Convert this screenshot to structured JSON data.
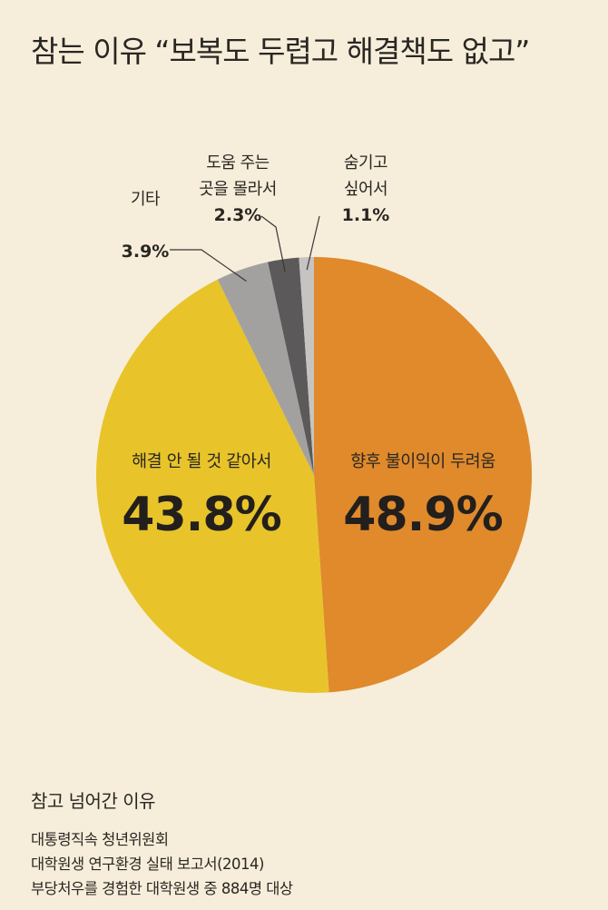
{
  "title": "참는 이유 “보복도 두렵고 해결책도 없고”",
  "footer": {
    "label": "참고 넘어간 이유",
    "source_lines": [
      "대통령직속 청년위원회",
      "대학원생 연구환경 실태 보고서(2014)",
      "부당처우를 경험한 대학원생 중 884명 대상"
    ]
  },
  "colors": {
    "background": "#f6eedb",
    "fear_of_retaliation": "#e08a2c",
    "wont_be_resolved": "#e8c42a",
    "other": "#a3a1a0",
    "dont_know_where": "#5b5959",
    "want_to_hide": "#c6c4c2"
  },
  "chart_data": {
    "type": "pie",
    "title": "참는 이유 “보복도 두렵고 해결책도 없고”",
    "start": "12 o'clock, clockwise",
    "slices": [
      {
        "key": "fear_of_retaliation",
        "label": "향후 불이익이 두려움",
        "label_lines": [
          "향후 불이익이 두려움"
        ],
        "value": 48.9,
        "value_label": "48.9%",
        "color": "#e08a2c",
        "label_position": "inside"
      },
      {
        "key": "wont_be_resolved",
        "label": "해결 안 될 것 같아서",
        "label_lines": [
          "해결 안 될 것 같아서"
        ],
        "value": 43.8,
        "value_label": "43.8%",
        "color": "#e8c42a",
        "label_position": "inside"
      },
      {
        "key": "other",
        "label": "기타",
        "label_lines": [
          "기타"
        ],
        "value": 3.9,
        "value_label": "3.9%",
        "color": "#a3a1a0",
        "label_position": "outside"
      },
      {
        "key": "dont_know_where",
        "label": "도움 주는 곳을 몰라서",
        "label_lines": [
          "도움 주는",
          "곳을 몰라서"
        ],
        "value": 2.3,
        "value_label": "2.3%",
        "color": "#5b5959",
        "label_position": "outside"
      },
      {
        "key": "want_to_hide",
        "label": "숨기고 싶어서",
        "label_lines": [
          "숨기고",
          "싶어서"
        ],
        "value": 1.1,
        "value_label": "1.1%",
        "color": "#c6c4c2",
        "label_position": "outside"
      }
    ]
  }
}
